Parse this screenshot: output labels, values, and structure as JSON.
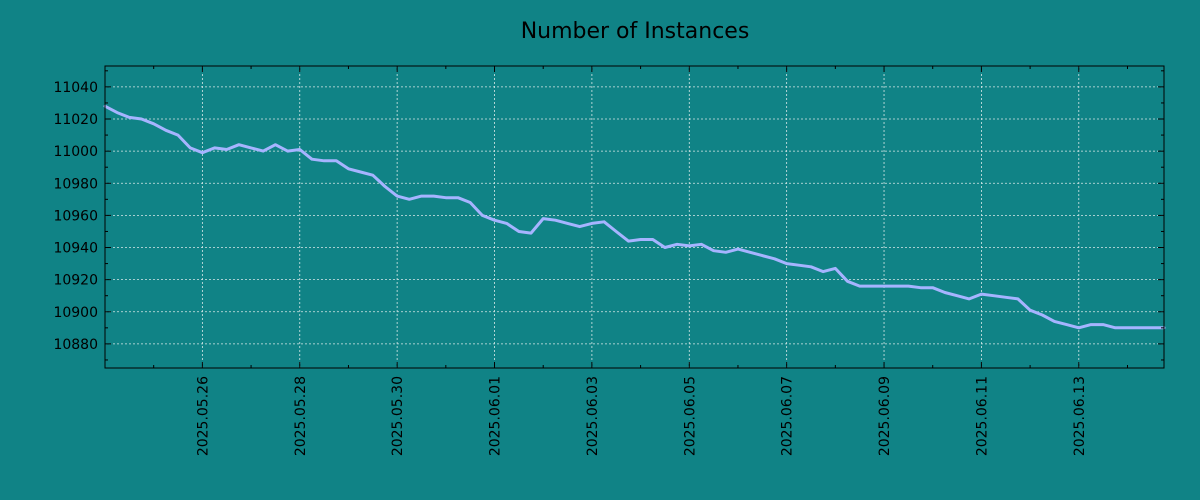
{
  "colors": {
    "background": "#108386",
    "line": "#a6b4ff",
    "axes": "#000000",
    "grid": "#d8e8e8"
  },
  "chart_data": {
    "type": "line",
    "title": "Number of Instances",
    "xlabel": "",
    "ylabel": "",
    "grid": true,
    "legend": "none",
    "xlim": [
      "2025-05-24",
      "2025-06-14 18:00"
    ],
    "ylim": [
      10865,
      11053
    ],
    "x_ticks": [
      "2025.05.26",
      "2025.05.28",
      "2025.05.30",
      "2025.06.01",
      "2025.06.03",
      "2025.06.05",
      "2025.06.07",
      "2025.06.09",
      "2025.06.11",
      "2025.06.13"
    ],
    "y_ticks": [
      10880,
      10900,
      10920,
      10940,
      10960,
      10980,
      11000,
      11020,
      11040
    ],
    "series": [
      {
        "name": "",
        "x": [
          "2025-05-24 00:00",
          "2025-05-24 06:00",
          "2025-05-24 12:00",
          "2025-05-24 18:00",
          "2025-05-25 00:00",
          "2025-05-25 06:00",
          "2025-05-25 12:00",
          "2025-05-25 18:00",
          "2025-05-26 00:00",
          "2025-05-26 06:00",
          "2025-05-26 12:00",
          "2025-05-26 18:00",
          "2025-05-27 00:00",
          "2025-05-27 06:00",
          "2025-05-27 12:00",
          "2025-05-27 18:00",
          "2025-05-28 00:00",
          "2025-05-28 06:00",
          "2025-05-28 12:00",
          "2025-05-28 18:00",
          "2025-05-29 00:00",
          "2025-05-29 06:00",
          "2025-05-29 12:00",
          "2025-05-29 18:00",
          "2025-05-30 00:00",
          "2025-05-30 06:00",
          "2025-05-30 12:00",
          "2025-05-30 18:00",
          "2025-05-31 00:00",
          "2025-05-31 06:00",
          "2025-05-31 12:00",
          "2025-05-31 18:00",
          "2025-06-01 00:00",
          "2025-06-01 06:00",
          "2025-06-01 12:00",
          "2025-06-01 18:00",
          "2025-06-02 00:00",
          "2025-06-02 06:00",
          "2025-06-02 12:00",
          "2025-06-02 18:00",
          "2025-06-03 00:00",
          "2025-06-03 06:00",
          "2025-06-03 12:00",
          "2025-06-03 18:00",
          "2025-06-04 00:00",
          "2025-06-04 06:00",
          "2025-06-04 12:00",
          "2025-06-04 18:00",
          "2025-06-05 00:00",
          "2025-06-05 06:00",
          "2025-06-05 12:00",
          "2025-06-05 18:00",
          "2025-06-06 00:00",
          "2025-06-06 06:00",
          "2025-06-06 12:00",
          "2025-06-06 18:00",
          "2025-06-07 00:00",
          "2025-06-07 06:00",
          "2025-06-07 12:00",
          "2025-06-07 18:00",
          "2025-06-08 00:00",
          "2025-06-08 06:00",
          "2025-06-08 12:00",
          "2025-06-08 18:00",
          "2025-06-09 00:00",
          "2025-06-09 06:00",
          "2025-06-09 12:00",
          "2025-06-09 18:00",
          "2025-06-10 00:00",
          "2025-06-10 06:00",
          "2025-06-10 12:00",
          "2025-06-10 18:00",
          "2025-06-11 00:00",
          "2025-06-11 06:00",
          "2025-06-11 12:00",
          "2025-06-11 18:00",
          "2025-06-12 00:00",
          "2025-06-12 06:00",
          "2025-06-12 12:00",
          "2025-06-12 18:00",
          "2025-06-13 00:00",
          "2025-06-13 06:00",
          "2025-06-13 12:00",
          "2025-06-13 18:00",
          "2025-06-14 00:00",
          "2025-06-14 06:00",
          "2025-06-14 12:00",
          "2025-06-14 18:00"
        ],
        "values": [
          11028,
          11024,
          11021,
          11020,
          11017,
          11013,
          11010,
          11002,
          10999,
          11002,
          11001,
          11004,
          11002,
          11000,
          11004,
          11000,
          11001,
          10995,
          10994,
          10994,
          10989,
          10987,
          10985,
          10978,
          10972,
          10970,
          10972,
          10972,
          10971,
          10971,
          10968,
          10960,
          10957,
          10955,
          10950,
          10949,
          10958,
          10957,
          10955,
          10953,
          10955,
          10956,
          10950,
          10944,
          10945,
          10945,
          10940,
          10942,
          10941,
          10942,
          10938,
          10937,
          10939,
          10937,
          10935,
          10933,
          10930,
          10929,
          10928,
          10925,
          10927,
          10919,
          10916,
          10916,
          10916,
          10916,
          10916,
          10915,
          10915,
          10912,
          10910,
          10908,
          10911,
          10910,
          10909,
          10908,
          10901,
          10898,
          10894,
          10892,
          10890,
          10892,
          10892,
          10890,
          10890,
          10890,
          10890,
          10890
        ]
      }
    ]
  }
}
